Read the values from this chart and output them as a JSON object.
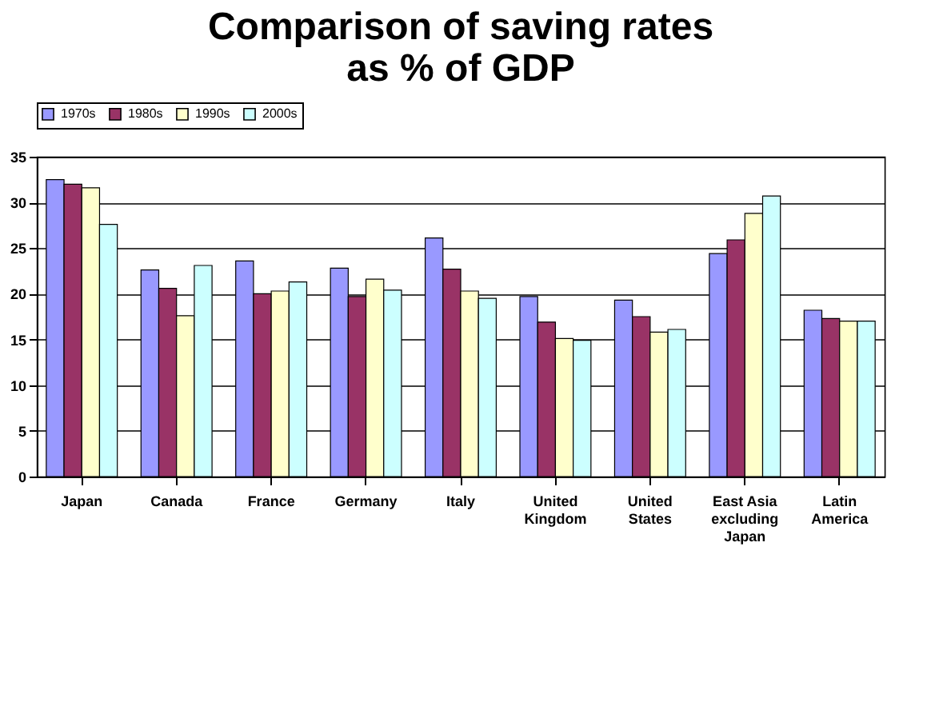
{
  "chart_data": {
    "type": "bar",
    "title": "Comparison of saving rates\nas % of GDP",
    "categories": [
      "Japan",
      "Canada",
      "France",
      "Germany",
      "Italy",
      "United\nKingdom",
      "United\nStates",
      "East Asia\nexcluding\nJapan",
      "Latin\nAmerica"
    ],
    "series": [
      {
        "name": "1970s",
        "color": "#9999ff",
        "values": [
          32.5,
          22.6,
          23.6,
          22.8,
          26.1,
          19.7,
          19.3,
          24.4,
          18.2
        ]
      },
      {
        "name": "1980s",
        "color": "#993366",
        "values": [
          32.0,
          20.6,
          20.0,
          19.7,
          22.7,
          16.9,
          17.5,
          25.9,
          17.3
        ]
      },
      {
        "name": "1990s",
        "color": "#ffffcc",
        "values": [
          31.6,
          17.6,
          20.3,
          21.6,
          20.3,
          15.1,
          15.8,
          28.8,
          17.0
        ]
      },
      {
        "name": "2000s",
        "color": "#ccffff",
        "values": [
          27.6,
          23.1,
          21.3,
          20.4,
          19.5,
          14.9,
          16.1,
          30.7,
          17.0
        ]
      }
    ],
    "ylim": [
      0,
      35
    ],
    "yticks": [
      0,
      5,
      10,
      15,
      20,
      25,
      30,
      35
    ],
    "grid": "y",
    "legend": "top"
  }
}
